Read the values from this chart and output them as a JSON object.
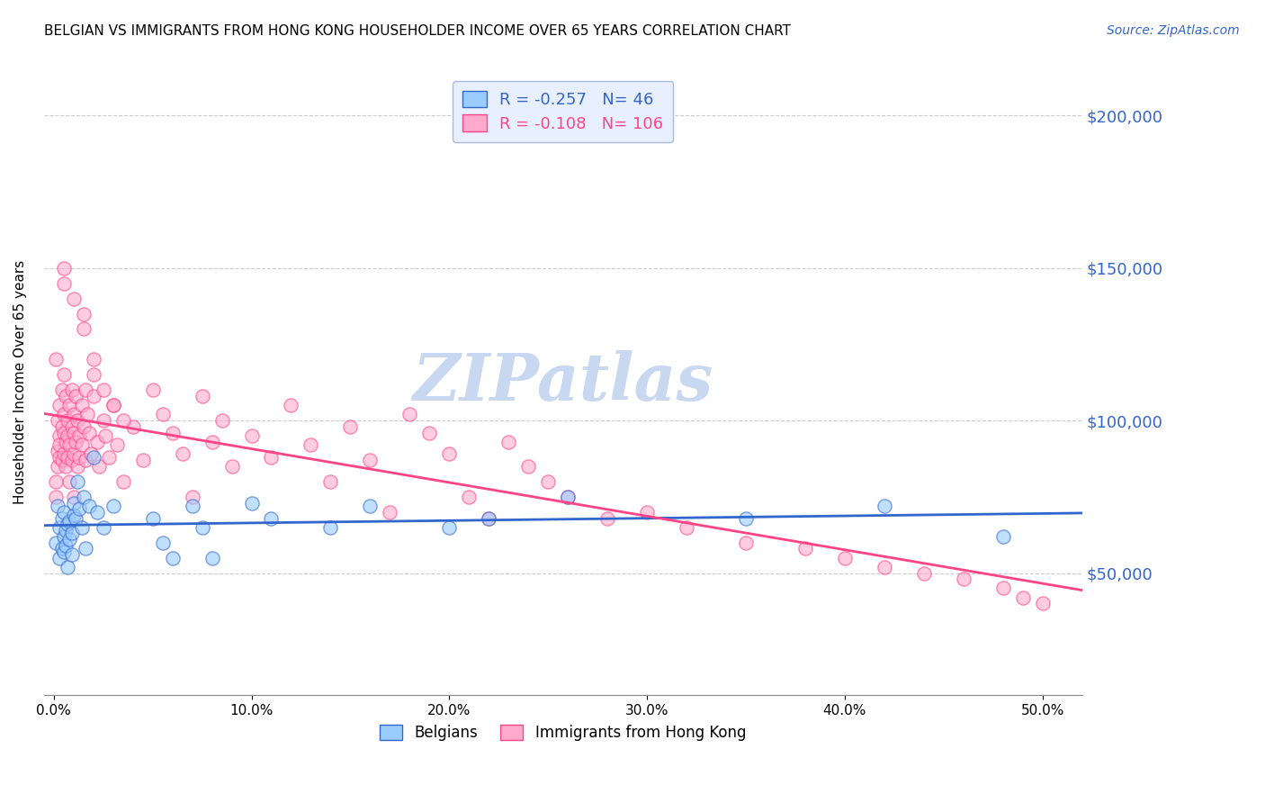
{
  "title": "BELGIAN VS IMMIGRANTS FROM HONG KONG HOUSEHOLDER INCOME OVER 65 YEARS CORRELATION CHART",
  "source": "Source: ZipAtlas.com",
  "ylabel": "Householder Income Over 65 years",
  "xlabel_ticks": [
    "0.0%",
    "10.0%",
    "20.0%",
    "30.0%",
    "40.0%",
    "50.0%"
  ],
  "xlabel_vals": [
    0.0,
    0.1,
    0.2,
    0.3,
    0.4,
    0.5
  ],
  "ytick_labels": [
    "$50,000",
    "$100,000",
    "$150,000",
    "$200,000"
  ],
  "ytick_vals": [
    50000,
    100000,
    150000,
    200000
  ],
  "ylim": [
    10000,
    215000
  ],
  "xlim": [
    -0.005,
    0.52
  ],
  "belgian_R": -0.257,
  "belgian_N": 46,
  "hk_R": -0.108,
  "hk_N": 106,
  "belgian_color": "#99ccff",
  "hk_color": "#ffaacc",
  "belgian_line_color": "#3366cc",
  "hk_line_color": "#ff4488",
  "watermark": "ZIPatlas",
  "watermark_color": "#c8d8f0",
  "legend_box_color": "#e8f0ff",
  "belgian_x": [
    0.001,
    0.002,
    0.003,
    0.003,
    0.004,
    0.004,
    0.005,
    0.005,
    0.005,
    0.006,
    0.006,
    0.007,
    0.007,
    0.008,
    0.008,
    0.009,
    0.009,
    0.01,
    0.01,
    0.011,
    0.012,
    0.013,
    0.014,
    0.015,
    0.016,
    0.018,
    0.02,
    0.022,
    0.025,
    0.03,
    0.05,
    0.055,
    0.06,
    0.07,
    0.075,
    0.08,
    0.1,
    0.11,
    0.14,
    0.16,
    0.2,
    0.22,
    0.26,
    0.35,
    0.42,
    0.48
  ],
  "belgian_y": [
    60000,
    72000,
    65000,
    55000,
    58000,
    68000,
    62000,
    57000,
    70000,
    64000,
    59000,
    66000,
    52000,
    67000,
    61000,
    63000,
    56000,
    69000,
    73000,
    68000,
    80000,
    71000,
    65000,
    75000,
    58000,
    72000,
    88000,
    70000,
    65000,
    72000,
    68000,
    60000,
    55000,
    72000,
    65000,
    55000,
    73000,
    68000,
    65000,
    72000,
    65000,
    68000,
    75000,
    68000,
    72000,
    62000
  ],
  "hk_x": [
    0.001,
    0.001,
    0.001,
    0.002,
    0.002,
    0.002,
    0.003,
    0.003,
    0.003,
    0.003,
    0.004,
    0.004,
    0.004,
    0.005,
    0.005,
    0.005,
    0.005,
    0.006,
    0.006,
    0.006,
    0.007,
    0.007,
    0.007,
    0.008,
    0.008,
    0.008,
    0.009,
    0.009,
    0.009,
    0.01,
    0.01,
    0.01,
    0.01,
    0.011,
    0.011,
    0.012,
    0.012,
    0.013,
    0.013,
    0.014,
    0.014,
    0.015,
    0.015,
    0.016,
    0.016,
    0.017,
    0.018,
    0.019,
    0.02,
    0.02,
    0.022,
    0.023,
    0.025,
    0.026,
    0.028,
    0.03,
    0.032,
    0.035,
    0.04,
    0.045,
    0.05,
    0.055,
    0.06,
    0.065,
    0.07,
    0.075,
    0.08,
    0.085,
    0.09,
    0.1,
    0.11,
    0.12,
    0.13,
    0.14,
    0.15,
    0.16,
    0.17,
    0.18,
    0.19,
    0.2,
    0.21,
    0.22,
    0.23,
    0.24,
    0.25,
    0.26,
    0.28,
    0.3,
    0.32,
    0.35,
    0.38,
    0.4,
    0.42,
    0.44,
    0.46,
    0.48,
    0.49,
    0.5,
    0.005,
    0.005,
    0.01,
    0.015,
    0.02,
    0.025,
    0.03,
    0.035
  ],
  "hk_y": [
    80000,
    75000,
    120000,
    90000,
    85000,
    100000,
    95000,
    88000,
    105000,
    92000,
    98000,
    87000,
    110000,
    102000,
    96000,
    89000,
    115000,
    108000,
    93000,
    85000,
    100000,
    95000,
    88000,
    105000,
    92000,
    80000,
    98000,
    87000,
    110000,
    102000,
    96000,
    89000,
    75000,
    108000,
    93000,
    100000,
    85000,
    95000,
    88000,
    105000,
    92000,
    130000,
    98000,
    87000,
    110000,
    102000,
    96000,
    89000,
    115000,
    108000,
    93000,
    85000,
    100000,
    95000,
    88000,
    105000,
    92000,
    80000,
    98000,
    87000,
    110000,
    102000,
    96000,
    89000,
    75000,
    108000,
    93000,
    100000,
    85000,
    95000,
    88000,
    105000,
    92000,
    80000,
    98000,
    87000,
    70000,
    102000,
    96000,
    89000,
    75000,
    68000,
    93000,
    85000,
    80000,
    75000,
    68000,
    70000,
    65000,
    60000,
    58000,
    55000,
    52000,
    50000,
    48000,
    45000,
    42000,
    40000,
    145000,
    150000,
    140000,
    135000,
    120000,
    110000,
    105000,
    100000
  ]
}
